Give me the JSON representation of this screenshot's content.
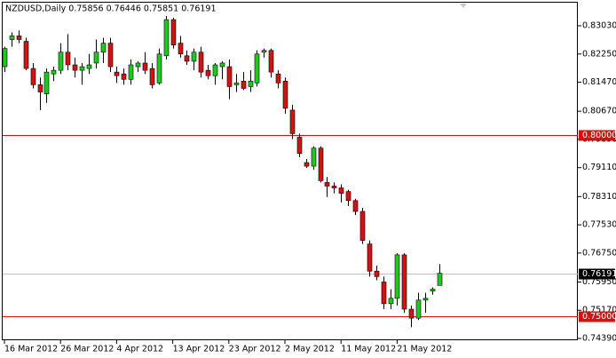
{
  "chart_data": {
    "type": "candlestick",
    "title": "NZDUSD,Daily  0.75856 0.76446 0.75851 0.76191",
    "categories": [
      "16 Mar 2012",
      null,
      null,
      null,
      null,
      null,
      null,
      null,
      "26 Mar 2012",
      null,
      null,
      null,
      null,
      null,
      null,
      null,
      "4 Apr 2012",
      null,
      null,
      null,
      null,
      null,
      null,
      null,
      "13 Apr 2012",
      null,
      null,
      null,
      null,
      null,
      null,
      null,
      "23 Apr 2012",
      null,
      null,
      null,
      null,
      null,
      null,
      null,
      "2 May 2012",
      null,
      null,
      null,
      null,
      null,
      null,
      null,
      "11 May 2012",
      null,
      null,
      null,
      null,
      null,
      null,
      null,
      "21 May 2012",
      null,
      null,
      null,
      null,
      null,
      null
    ],
    "open": [
      0.819,
      0.8265,
      0.8275,
      0.826,
      0.8185,
      0.814,
      0.8115,
      0.817,
      0.818,
      0.823,
      0.8195,
      0.818,
      0.8185,
      0.82,
      0.823,
      0.8255,
      0.8175,
      0.817,
      0.8155,
      0.819,
      0.82,
      0.8185,
      0.8145,
      0.822,
      0.832,
      0.8255,
      0.822,
      0.8205,
      0.823,
      0.818,
      0.8165,
      0.819,
      0.819,
      0.814,
      0.815,
      0.8135,
      0.8145,
      0.823,
      0.8235,
      0.817,
      0.815,
      0.807,
      0.7995,
      0.7925,
      0.7915,
      0.7965,
      0.787,
      0.786,
      0.7855,
      0.7845,
      0.782,
      0.779,
      0.77,
      0.7625,
      0.7595,
      0.7535,
      0.755,
      0.767,
      0.752,
      0.7495,
      0.7545,
      0.757,
      0.75856
    ],
    "high": [
      0.8245,
      0.8285,
      0.829,
      0.827,
      0.82,
      0.816,
      0.8185,
      0.819,
      0.8255,
      0.828,
      0.8215,
      0.82,
      0.8225,
      0.8265,
      0.827,
      0.827,
      0.819,
      0.8185,
      0.821,
      0.8205,
      0.823,
      0.82,
      0.824,
      0.833,
      0.8325,
      0.8275,
      0.8235,
      0.824,
      0.8245,
      0.8195,
      0.82,
      0.8205,
      0.821,
      0.817,
      0.8175,
      0.818,
      0.8235,
      0.824,
      0.824,
      0.818,
      0.816,
      0.8085,
      0.8005,
      0.7935,
      0.797,
      0.797,
      0.7885,
      0.787,
      0.7865,
      0.785,
      0.7825,
      0.78,
      0.771,
      0.764,
      0.761,
      0.7575,
      0.7675,
      0.7675,
      0.753,
      0.7565,
      0.7565,
      0.758,
      0.76446
    ],
    "low": [
      0.8175,
      0.8245,
      0.8255,
      0.818,
      0.813,
      0.807,
      0.809,
      0.815,
      0.817,
      0.818,
      0.816,
      0.814,
      0.817,
      0.8185,
      0.82,
      0.8175,
      0.8145,
      0.814,
      0.814,
      0.8175,
      0.817,
      0.813,
      0.814,
      0.821,
      0.824,
      0.8215,
      0.8195,
      0.818,
      0.816,
      0.8155,
      0.814,
      0.8155,
      0.81,
      0.812,
      0.8125,
      0.812,
      0.8135,
      0.8215,
      0.816,
      0.813,
      0.806,
      0.799,
      0.794,
      0.791,
      0.7905,
      0.787,
      0.783,
      0.784,
      0.7815,
      0.7805,
      0.778,
      0.77,
      0.761,
      0.76,
      0.752,
      0.752,
      0.753,
      0.751,
      0.747,
      0.749,
      0.751,
      0.756,
      0.75851
    ],
    "close": [
      0.824,
      0.8275,
      0.8265,
      0.8185,
      0.814,
      0.812,
      0.8175,
      0.818,
      0.823,
      0.8195,
      0.818,
      0.819,
      0.8195,
      0.823,
      0.8255,
      0.819,
      0.8165,
      0.8155,
      0.8195,
      0.82,
      0.818,
      0.814,
      0.8225,
      0.832,
      0.825,
      0.8225,
      0.8205,
      0.823,
      0.8175,
      0.8165,
      0.8195,
      0.82,
      0.8135,
      0.8145,
      0.813,
      0.815,
      0.8225,
      0.8235,
      0.8175,
      0.8145,
      0.8075,
      0.8005,
      0.795,
      0.7915,
      0.7965,
      0.7875,
      0.786,
      0.7855,
      0.784,
      0.782,
      0.779,
      0.771,
      0.7625,
      0.761,
      0.7535,
      0.755,
      0.767,
      0.752,
      0.7495,
      0.7545,
      0.755,
      0.7575,
      0.76191
    ],
    "up_color": "#1ec81e",
    "down_color": "#d01414",
    "ylim": [
      0.74341,
      0.83693
    ],
    "yticks": [
      {
        "value": 0.8303,
        "label": "0.83030"
      },
      {
        "value": 0.8225,
        "label": "0.82250"
      },
      {
        "value": 0.8147,
        "label": "0.81470"
      },
      {
        "value": 0.8067,
        "label": "0.80670"
      },
      {
        "value": 0.7989,
        "label": "0.79890"
      },
      {
        "value": 0.7911,
        "label": "0.79110"
      },
      {
        "value": 0.7831,
        "label": "0.78310"
      },
      {
        "value": 0.7753,
        "label": "0.77530"
      },
      {
        "value": 0.7675,
        "label": "0.76750"
      },
      {
        "value": 0.7595,
        "label": "0.75950"
      },
      {
        "value": 0.7517,
        "label": "0.75170"
      },
      {
        "value": 0.7439,
        "label": "0.74390"
      }
    ],
    "hlines": [
      {
        "value": 0.8,
        "label": "0.80000",
        "color": "#d01414"
      },
      {
        "value": 0.75,
        "label": "0.75000",
        "color": "#d01414"
      },
      {
        "value": 0.76191,
        "label": "0.76191",
        "color": "#c0c0c0"
      }
    ]
  }
}
